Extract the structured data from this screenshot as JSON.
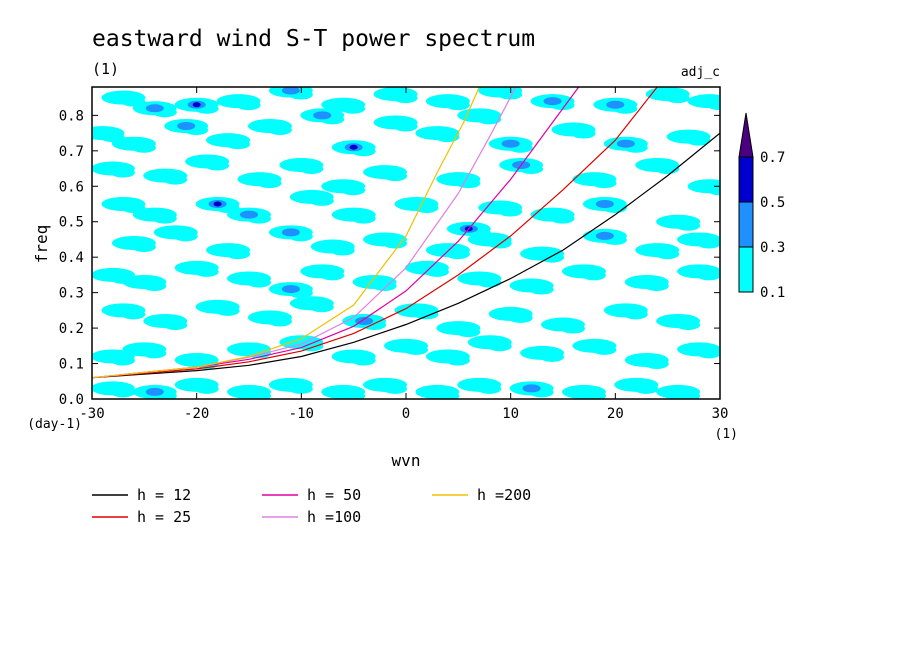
{
  "chart_data": {
    "type": "heatmap",
    "title": "eastward wind S-T power spectrum",
    "subtitle": "(1)",
    "tag": "adj_c",
    "xlabel": "wvn",
    "xunit": "(1)",
    "ylabel": "freq",
    "yunit": "(day-1)",
    "xlim": [
      -30,
      30
    ],
    "ylim": [
      0,
      0.88
    ],
    "x_ticks": [
      "-30",
      "-20",
      "-10",
      "0",
      "10",
      "20",
      "30"
    ],
    "y_ticks": [
      "0.0",
      "0.1",
      "0.2",
      "0.3",
      "0.4",
      "0.5",
      "0.6",
      "0.7",
      "0.8"
    ],
    "colorbar": {
      "levels": [
        "0.1",
        "0.3",
        "0.5",
        "0.7"
      ],
      "colors": [
        "#00ffff",
        "#1e90ff",
        "#0000cd",
        "#4b0082"
      ]
    },
    "dispersion_curves": [
      {
        "name": "h = 12",
        "color": "#000000",
        "points": [
          [
            -30,
            0.06
          ],
          [
            -20,
            0.08
          ],
          [
            -15,
            0.095
          ],
          [
            -10,
            0.12
          ],
          [
            -5,
            0.16
          ],
          [
            0,
            0.21
          ],
          [
            5,
            0.27
          ],
          [
            10,
            0.34
          ],
          [
            15,
            0.42
          ],
          [
            20,
            0.52
          ],
          [
            25,
            0.63
          ],
          [
            30,
            0.75
          ]
        ]
      },
      {
        "name": "h = 25",
        "color": "#e00000",
        "points": [
          [
            -30,
            0.06
          ],
          [
            -20,
            0.085
          ],
          [
            -15,
            0.105
          ],
          [
            -10,
            0.135
          ],
          [
            -5,
            0.185
          ],
          [
            0,
            0.255
          ],
          [
            5,
            0.35
          ],
          [
            10,
            0.46
          ],
          [
            15,
            0.59
          ],
          [
            20,
            0.73
          ],
          [
            24,
            0.88
          ]
        ]
      },
      {
        "name": "h = 50",
        "color": "#e000a0",
        "points": [
          [
            -30,
            0.06
          ],
          [
            -20,
            0.09
          ],
          [
            -15,
            0.112
          ],
          [
            -10,
            0.145
          ],
          [
            -5,
            0.205
          ],
          [
            0,
            0.305
          ],
          [
            5,
            0.445
          ],
          [
            10,
            0.62
          ],
          [
            14,
            0.78
          ],
          [
            16.5,
            0.88
          ]
        ]
      },
      {
        "name": "h =100",
        "color": "#e080e0",
        "points": [
          [
            -30,
            0.06
          ],
          [
            -20,
            0.09
          ],
          [
            -15,
            0.118
          ],
          [
            -10,
            0.155
          ],
          [
            -5,
            0.23
          ],
          [
            0,
            0.37
          ],
          [
            5,
            0.58
          ],
          [
            8,
            0.74
          ],
          [
            10.5,
            0.88
          ]
        ]
      },
      {
        "name": "h =200",
        "color": "#f0c000",
        "points": [
          [
            -30,
            0.06
          ],
          [
            -20,
            0.09
          ],
          [
            -15,
            0.12
          ],
          [
            -10,
            0.17
          ],
          [
            -5,
            0.265
          ],
          [
            0,
            0.46
          ],
          [
            3,
            0.64
          ],
          [
            5.5,
            0.78
          ],
          [
            7,
            0.88
          ]
        ]
      }
    ],
    "blobs": [
      [
        -27,
        0.85,
        1
      ],
      [
        -24,
        0.82,
        2
      ],
      [
        -20,
        0.83,
        3
      ],
      [
        -16,
        0.84,
        1
      ],
      [
        -11,
        0.87,
        2
      ],
      [
        -6,
        0.83,
        1
      ],
      [
        -1,
        0.86,
        1
      ],
      [
        4,
        0.84,
        1
      ],
      [
        9,
        0.87,
        1
      ],
      [
        14,
        0.84,
        2
      ],
      [
        20,
        0.83,
        2
      ],
      [
        25,
        0.86,
        1
      ],
      [
        29,
        0.84,
        1
      ],
      [
        -29,
        0.75,
        1
      ],
      [
        -26,
        0.72,
        1
      ],
      [
        -21,
        0.77,
        2
      ],
      [
        -17,
        0.73,
        1
      ],
      [
        -13,
        0.77,
        1
      ],
      [
        -8,
        0.8,
        2
      ],
      [
        -5,
        0.71,
        3
      ],
      [
        -1,
        0.78,
        1
      ],
      [
        3,
        0.75,
        1
      ],
      [
        7,
        0.8,
        1
      ],
      [
        10,
        0.72,
        2
      ],
      [
        16,
        0.76,
        1
      ],
      [
        21,
        0.72,
        2
      ],
      [
        27,
        0.74,
        1
      ],
      [
        -28,
        0.65,
        1
      ],
      [
        -23,
        0.63,
        1
      ],
      [
        -19,
        0.67,
        1
      ],
      [
        -14,
        0.62,
        1
      ],
      [
        -10,
        0.66,
        1
      ],
      [
        -6,
        0.6,
        1
      ],
      [
        -2,
        0.64,
        1
      ],
      [
        5,
        0.62,
        1
      ],
      [
        11,
        0.66,
        2
      ],
      [
        18,
        0.62,
        1
      ],
      [
        24,
        0.66,
        1
      ],
      [
        29,
        0.6,
        1
      ],
      [
        -27,
        0.55,
        1
      ],
      [
        -24,
        0.52,
        1
      ],
      [
        -18,
        0.55,
        3
      ],
      [
        -15,
        0.52,
        2
      ],
      [
        -9,
        0.57,
        1
      ],
      [
        -5,
        0.52,
        1
      ],
      [
        1,
        0.55,
        1
      ],
      [
        6,
        0.48,
        3
      ],
      [
        9,
        0.54,
        1
      ],
      [
        14,
        0.52,
        1
      ],
      [
        19,
        0.55,
        2
      ],
      [
        26,
        0.5,
        1
      ],
      [
        -26,
        0.44,
        1
      ],
      [
        -22,
        0.47,
        1
      ],
      [
        -17,
        0.42,
        1
      ],
      [
        -11,
        0.47,
        2
      ],
      [
        -7,
        0.43,
        1
      ],
      [
        -2,
        0.45,
        1
      ],
      [
        4,
        0.42,
        1
      ],
      [
        8,
        0.45,
        1
      ],
      [
        13,
        0.41,
        1
      ],
      [
        19,
        0.46,
        2
      ],
      [
        24,
        0.42,
        1
      ],
      [
        28,
        0.45,
        1
      ],
      [
        -28,
        0.35,
        1
      ],
      [
        -25,
        0.33,
        1
      ],
      [
        -20,
        0.37,
        1
      ],
      [
        -15,
        0.34,
        1
      ],
      [
        -11,
        0.31,
        2
      ],
      [
        -8,
        0.36,
        1
      ],
      [
        -3,
        0.33,
        1
      ],
      [
        2,
        0.37,
        1
      ],
      [
        7,
        0.34,
        1
      ],
      [
        12,
        0.32,
        1
      ],
      [
        17,
        0.36,
        1
      ],
      [
        23,
        0.33,
        1
      ],
      [
        28,
        0.36,
        1
      ],
      [
        -27,
        0.25,
        1
      ],
      [
        -23,
        0.22,
        1
      ],
      [
        -18,
        0.26,
        1
      ],
      [
        -13,
        0.23,
        1
      ],
      [
        -9,
        0.27,
        1
      ],
      [
        -4,
        0.22,
        2
      ],
      [
        1,
        0.25,
        1
      ],
      [
        5,
        0.2,
        1
      ],
      [
        10,
        0.24,
        1
      ],
      [
        15,
        0.21,
        1
      ],
      [
        21,
        0.25,
        1
      ],
      [
        26,
        0.22,
        1
      ],
      [
        -28,
        0.12,
        1
      ],
      [
        -25,
        0.14,
        1
      ],
      [
        -20,
        0.11,
        1
      ],
      [
        -15,
        0.14,
        1
      ],
      [
        -10,
        0.16,
        1
      ],
      [
        -5,
        0.12,
        1
      ],
      [
        0,
        0.15,
        1
      ],
      [
        4,
        0.12,
        1
      ],
      [
        8,
        0.16,
        1
      ],
      [
        13,
        0.13,
        1
      ],
      [
        18,
        0.15,
        1
      ],
      [
        23,
        0.11,
        1
      ],
      [
        28,
        0.14,
        1
      ],
      [
        -28,
        0.03,
        1
      ],
      [
        -24,
        0.02,
        2
      ],
      [
        -20,
        0.04,
        1
      ],
      [
        -15,
        0.02,
        1
      ],
      [
        -11,
        0.04,
        1
      ],
      [
        -6,
        0.02,
        1
      ],
      [
        -2,
        0.04,
        1
      ],
      [
        3,
        0.02,
        1
      ],
      [
        7,
        0.04,
        1
      ],
      [
        12,
        0.03,
        2
      ],
      [
        17,
        0.02,
        1
      ],
      [
        22,
        0.04,
        1
      ],
      [
        26,
        0.02,
        1
      ]
    ]
  }
}
